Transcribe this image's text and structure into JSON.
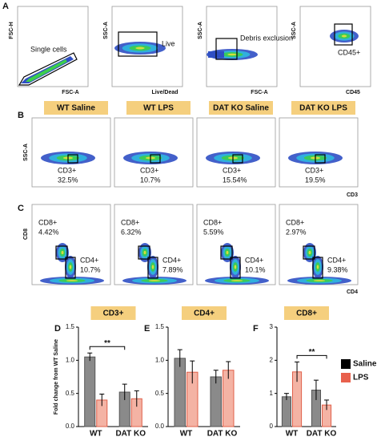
{
  "gating": {
    "label": "A",
    "plots": [
      {
        "y_label": "FSC-H",
        "x_label": "FSC-A",
        "gate": "Single cells"
      },
      {
        "y_label": "SSC-A",
        "x_label": "Live/Dead",
        "gate": "Live"
      },
      {
        "y_label": "SSC-A",
        "x_label": "FSC-A",
        "gate": "Debris exclusion"
      },
      {
        "y_label": "SSC-A",
        "x_label": "CD45",
        "gate": "CD45+"
      }
    ]
  },
  "cd3": {
    "label": "B",
    "y_label": "SSC-A",
    "x_label": "CD3",
    "plots": [
      {
        "group": "WT Saline",
        "gate": "CD3+",
        "percent": "32.5%"
      },
      {
        "group": "WT LPS",
        "gate": "CD3+",
        "percent": "10.7%"
      },
      {
        "group": "DAT KO Saline",
        "gate": "CD3+",
        "percent": "15.54%"
      },
      {
        "group": "DAT KO LPS",
        "gate": "CD3+",
        "percent": "19.5%"
      }
    ]
  },
  "cd4_cd8": {
    "label": "C",
    "y_label": "CD8",
    "x_label": "CD4",
    "plots": [
      {
        "cd8": "CD8+",
        "cd8_percent": "4.42%",
        "cd4": "CD4+",
        "cd4_percent": "10.7%"
      },
      {
        "cd8": "CD8+",
        "cd8_percent": "6.32%",
        "cd4": "CD4+",
        "cd4_percent": "7.89%"
      },
      {
        "cd8": "CD8+",
        "cd8_percent": "5.59%",
        "cd4": "CD4+",
        "cd4_percent": "10.1%"
      },
      {
        "cd8": "CD8+",
        "cd8_percent": "2.97%",
        "cd4": "CD4+",
        "cd4_percent": "9.38%"
      }
    ]
  },
  "chart_data": [
    {
      "type": "bar",
      "label": "D",
      "title": "CD3+",
      "y_label": "Fold change from WT Saline",
      "significance": "**",
      "categories": [
        "WT",
        "DAT KO"
      ],
      "series": [
        {
          "name": "Saline",
          "color": "#8a8a8a",
          "values": [
            1.05,
            0.52
          ],
          "errors": [
            0.06,
            0.12
          ]
        },
        {
          "name": "LPS",
          "color": "#f4b3a4",
          "values": [
            0.4,
            0.42
          ],
          "errors": [
            0.09,
            0.12
          ]
        }
      ],
      "ylim": [
        0,
        1.5
      ],
      "yticks": [
        {
          "value": 0,
          "label": "0.0"
        },
        0.5,
        {
          "value": 1,
          "label": "1.0"
        },
        1.5
      ]
    },
    {
      "type": "bar",
      "label": "E",
      "title": "CD4+",
      "categories": [
        "WT",
        "DAT KO"
      ],
      "series": [
        {
          "name": "Saline",
          "color": "#8a8a8a",
          "values": [
            1.03,
            0.75
          ],
          "errors": [
            0.13,
            0.1
          ]
        },
        {
          "name": "LPS",
          "color": "#f4b3a4",
          "values": [
            0.82,
            0.85
          ],
          "errors": [
            0.17,
            0.13
          ]
        }
      ],
      "ylim": [
        0,
        1.5
      ],
      "yticks": [
        {
          "value": 0,
          "label": "0.0"
        },
        0.5,
        {
          "value": 1,
          "label": "1.0"
        },
        1.5
      ]
    },
    {
      "type": "bar",
      "label": "F",
      "title": "CD8+",
      "significance": "**",
      "categories": [
        "WT",
        "DAT KO"
      ],
      "series": [
        {
          "name": "Saline",
          "color": "#8a8a8a",
          "values": [
            0.9,
            1.1
          ],
          "errors": [
            0.1,
            0.3
          ]
        },
        {
          "name": "LPS",
          "color": "#f4b3a4",
          "values": [
            1.65,
            0.65
          ],
          "errors": [
            0.3,
            0.15
          ]
        }
      ],
      "ylim": [
        0,
        3
      ],
      "yticks": [
        0,
        1,
        2,
        3
      ]
    }
  ]
}
